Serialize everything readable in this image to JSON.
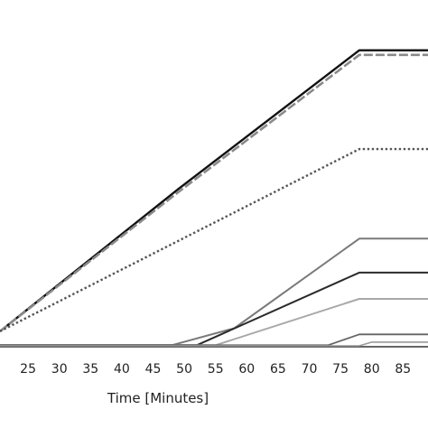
{
  "chart_data": {
    "type": "line",
    "xlabel": "Time [Minutes]",
    "ylabel": "",
    "title": "",
    "xlim": [
      20.5,
      89.0
    ],
    "ylim": [
      0,
      100
    ],
    "xticks": [
      25,
      30,
      35,
      40,
      45,
      50,
      55,
      60,
      65,
      70,
      75,
      80,
      85
    ],
    "grid": false,
    "series": [
      {
        "color": "#111111",
        "style": "solid",
        "width": 2.4,
        "points": [
          [
            20.5,
            5
          ],
          [
            49,
            51
          ],
          [
            78,
            96
          ],
          [
            89,
            96
          ]
        ]
      },
      {
        "color": "#8a8a8a",
        "style": "dashed",
        "width": 2.6,
        "points": [
          [
            20.5,
            5
          ],
          [
            49,
            50
          ],
          [
            78,
            94.5
          ],
          [
            89,
            94.5
          ]
        ]
      },
      {
        "color": "#555555",
        "style": "dotted",
        "width": 2.4,
        "points": [
          [
            20.5,
            5
          ],
          [
            78,
            64
          ],
          [
            89,
            64
          ]
        ]
      },
      {
        "color": "#7a7a7a",
        "style": "solid",
        "width": 2,
        "points": [
          [
            20.5,
            0.5
          ],
          [
            48,
            0.5
          ],
          [
            58,
            6
          ],
          [
            78,
            35
          ],
          [
            89,
            35
          ]
        ]
      },
      {
        "color": "#2a2a2a",
        "style": "solid",
        "width": 2,
        "points": [
          [
            20.5,
            0.5
          ],
          [
            52,
            0.5
          ],
          [
            78,
            24
          ],
          [
            89,
            24
          ]
        ]
      },
      {
        "color": "#a8a8a8",
        "style": "solid",
        "width": 2,
        "points": [
          [
            20.5,
            0.5
          ],
          [
            55,
            0.5
          ],
          [
            78,
            15.5
          ],
          [
            89,
            15.5
          ]
        ]
      },
      {
        "color": "#666666",
        "style": "solid",
        "width": 1.8,
        "points": [
          [
            20.5,
            0.5
          ],
          [
            73,
            0.5
          ],
          [
            78,
            4
          ],
          [
            89,
            4
          ]
        ]
      },
      {
        "color": "#9a9a9a",
        "style": "solid",
        "width": 1.6,
        "points": [
          [
            20.5,
            0.3
          ],
          [
            78,
            0.3
          ],
          [
            80,
            1.5
          ],
          [
            89,
            1.5
          ]
        ]
      }
    ]
  }
}
